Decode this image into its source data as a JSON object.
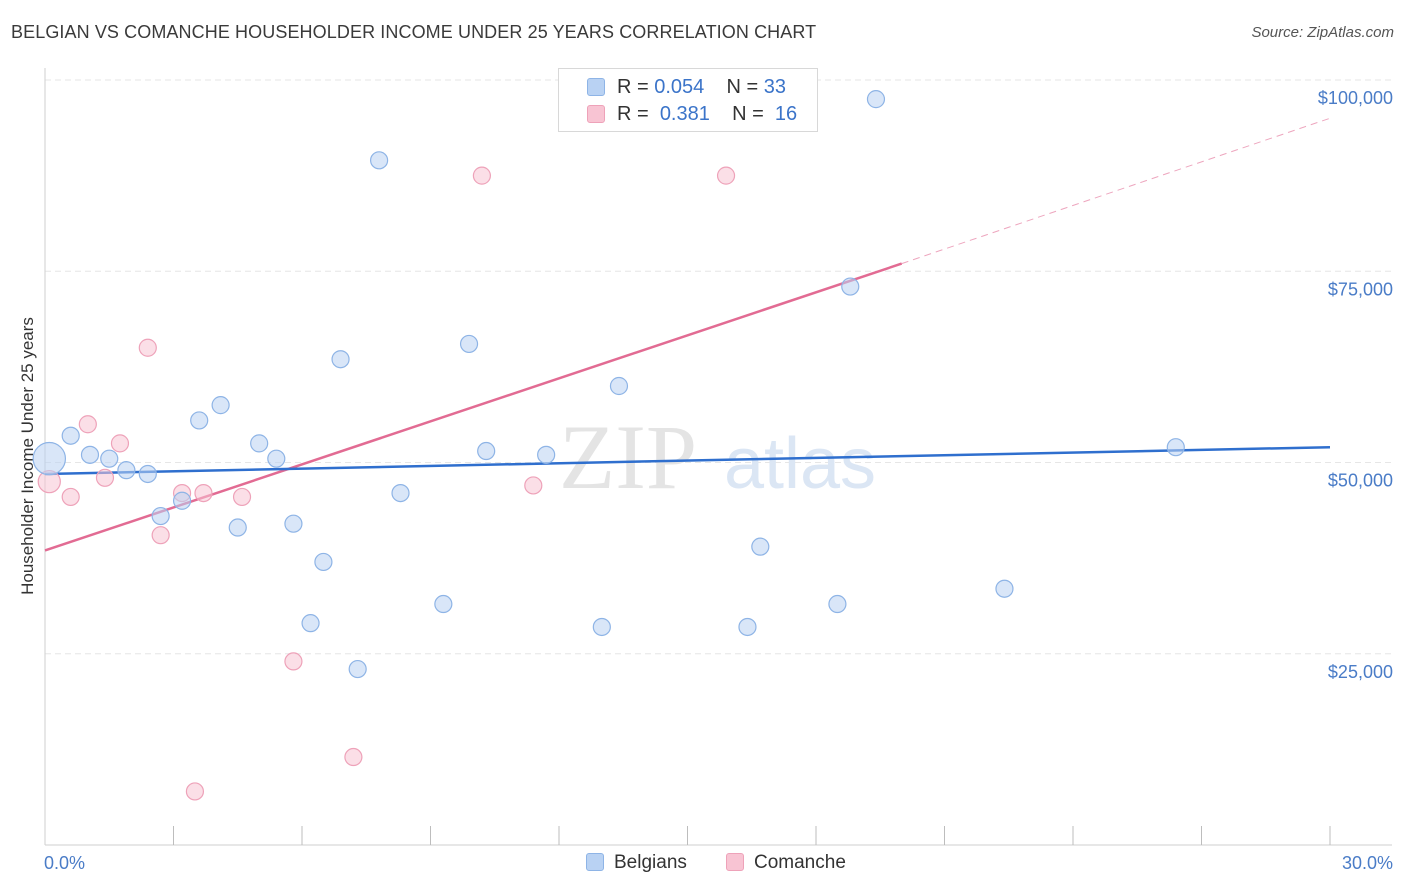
{
  "header": {
    "title": "BELGIAN VS COMANCHE HOUSEHOLDER INCOME UNDER 25 YEARS CORRELATION CHART",
    "source": "Source: ZipAtlas.com"
  },
  "watermark": {
    "zip": "ZIP",
    "atlas": "atlas"
  },
  "legend": {
    "rows": [
      {
        "r_label": "R =",
        "r_value": "0.054",
        "n_label": "N =",
        "n_value": "33"
      },
      {
        "r_label": "R =",
        "r_value": "0.381",
        "n_label": "N =",
        "n_value": "16"
      }
    ]
  },
  "bottom_legend": {
    "series1": "Belgians",
    "series2": "Comanche"
  },
  "colors": {
    "belgians_fill": "#b9d2f3",
    "belgians_stroke": "#8eb4e6",
    "belgians_line": "#2f6fce",
    "comanche_fill": "#f8c4d3",
    "comanche_stroke": "#eea2b9",
    "comanche_line": "#e26b93",
    "tick_text": "#4a7cc7",
    "grid": "#e6e6e6"
  },
  "chart_data": {
    "type": "scatter",
    "title": "BELGIAN VS COMANCHE HOUSEHOLDER INCOME UNDER 25 YEARS CORRELATION CHART",
    "xlabel": "",
    "ylabel": "Householder Income Under 25 years",
    "xlim": [
      0,
      30
    ],
    "ylim": [
      0,
      100000
    ],
    "x_tick_labels": [
      "0.0%",
      "30.0%"
    ],
    "y_ticks": [
      25000,
      50000,
      75000,
      100000
    ],
    "y_tick_labels": [
      "$25,000",
      "$50,000",
      "$75,000",
      "$100,000"
    ],
    "grid": true,
    "legend_position": "top-center",
    "series": [
      {
        "name": "Belgians",
        "r": 0.054,
        "n": 33,
        "points": [
          [
            0.1,
            50500,
            1.9
          ],
          [
            0.6,
            53500,
            1
          ],
          [
            1.05,
            51000,
            1
          ],
          [
            1.5,
            50500,
            1
          ],
          [
            1.9,
            49000,
            1
          ],
          [
            2.4,
            48500,
            1
          ],
          [
            2.7,
            43000,
            1
          ],
          [
            3.2,
            45000,
            1
          ],
          [
            3.6,
            55500,
            1
          ],
          [
            4.1,
            57500,
            1
          ],
          [
            4.5,
            41500,
            1
          ],
          [
            5.0,
            52500,
            1
          ],
          [
            5.4,
            50500,
            1
          ],
          [
            5.8,
            42000,
            1
          ],
          [
            6.2,
            29000,
            1
          ],
          [
            6.5,
            37000,
            1
          ],
          [
            6.9,
            63500,
            1
          ],
          [
            7.3,
            23000,
            1
          ],
          [
            7.8,
            89500,
            1
          ],
          [
            8.3,
            46000,
            1
          ],
          [
            9.3,
            31500,
            1
          ],
          [
            9.9,
            65500,
            1
          ],
          [
            10.3,
            51500,
            1
          ],
          [
            11.7,
            51000,
            1
          ],
          [
            13.0,
            28500,
            1
          ],
          [
            13.4,
            60000,
            1
          ],
          [
            16.4,
            28500,
            1
          ],
          [
            16.7,
            39000,
            1
          ],
          [
            18.5,
            31500,
            1
          ],
          [
            18.8,
            73000,
            1
          ],
          [
            19.4,
            97500,
            1
          ],
          [
            22.4,
            33500,
            1
          ],
          [
            26.4,
            52000,
            1
          ]
        ],
        "trend": {
          "x": [
            0,
            30
          ],
          "y": [
            48500,
            52000
          ]
        }
      },
      {
        "name": "Comanche",
        "r": 0.381,
        "n": 16,
        "points": [
          [
            0.1,
            47500,
            1.3
          ],
          [
            0.6,
            45500,
            1
          ],
          [
            1.0,
            55000,
            1
          ],
          [
            1.4,
            48000,
            1
          ],
          [
            1.75,
            52500,
            1
          ],
          [
            2.4,
            65000,
            1
          ],
          [
            2.7,
            40500,
            1
          ],
          [
            3.2,
            46000,
            1
          ],
          [
            3.5,
            7000,
            1
          ],
          [
            3.7,
            46000,
            1
          ],
          [
            4.6,
            45500,
            1
          ],
          [
            5.8,
            24000,
            1
          ],
          [
            7.2,
            11500,
            1
          ],
          [
            10.2,
            87500,
            1
          ],
          [
            11.4,
            47000,
            1
          ],
          [
            15.9,
            87500,
            1
          ]
        ],
        "trend": {
          "x": [
            0,
            20
          ],
          "y": [
            38500,
            76000
          ]
        },
        "trend_extension": {
          "x": [
            20,
            30
          ],
          "y": [
            76000,
            95000
          ]
        }
      }
    ]
  }
}
